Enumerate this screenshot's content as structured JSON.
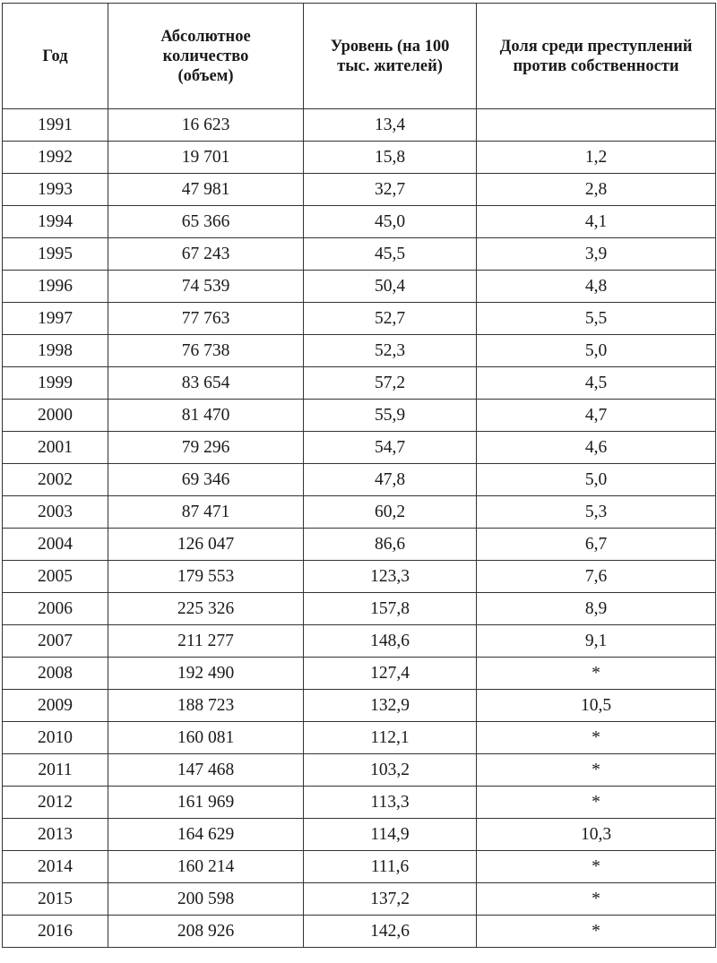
{
  "table": {
    "headers": [
      "Год",
      "Абсолютное количество (объем)",
      "Уровень (на 100 тыс. жителей)",
      "Доля среди преступлений против собственности"
    ],
    "rows": [
      [
        "1991",
        "16 623",
        "13,4",
        ""
      ],
      [
        "1992",
        "19 701",
        "15,8",
        "1,2"
      ],
      [
        "1993",
        "47 981",
        "32,7",
        "2,8"
      ],
      [
        "1994",
        "65 366",
        "45,0",
        "4,1"
      ],
      [
        "1995",
        "67 243",
        "45,5",
        "3,9"
      ],
      [
        "1996",
        "74 539",
        "50,4",
        "4,8"
      ],
      [
        "1997",
        "77 763",
        "52,7",
        "5,5"
      ],
      [
        "1998",
        "76 738",
        "52,3",
        "5,0"
      ],
      [
        "1999",
        "83 654",
        "57,2",
        "4,5"
      ],
      [
        "2000",
        "81 470",
        "55,9",
        "4,7"
      ],
      [
        "2001",
        "79 296",
        "54,7",
        "4,6"
      ],
      [
        "2002",
        "69 346",
        "47,8",
        "5,0"
      ],
      [
        "2003",
        "87 471",
        "60,2",
        "5,3"
      ],
      [
        "2004",
        "126 047",
        "86,6",
        "6,7"
      ],
      [
        "2005",
        "179 553",
        "123,3",
        "7,6"
      ],
      [
        "2006",
        "225 326",
        "157,8",
        "8,9"
      ],
      [
        "2007",
        "211 277",
        "148,6",
        "9,1"
      ],
      [
        "2008",
        "192 490",
        "127,4",
        "*"
      ],
      [
        "2009",
        "188 723",
        "132,9",
        "10,5"
      ],
      [
        "2010",
        "160 081",
        "112,1",
        "*"
      ],
      [
        "2011",
        "147 468",
        "103,2",
        "*"
      ],
      [
        "2012",
        "161 969",
        "113,3",
        "*"
      ],
      [
        "2013",
        "164 629",
        "114,9",
        "10,3"
      ],
      [
        "2014",
        "160 214",
        "111,6",
        "*"
      ],
      [
        "2015",
        "200 598",
        "137,2",
        "*"
      ],
      [
        "2016",
        "208 926",
        "142,6",
        "*"
      ]
    ]
  }
}
